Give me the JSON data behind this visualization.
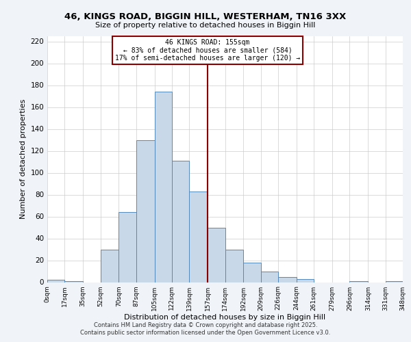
{
  "title": "46, KINGS ROAD, BIGGIN HILL, WESTERHAM, TN16 3XX",
  "subtitle": "Size of property relative to detached houses in Biggin Hill",
  "xlabel": "Distribution of detached houses by size in Biggin Hill",
  "ylabel": "Number of detached properties",
  "bin_edges": [
    0,
    17,
    35,
    52,
    70,
    87,
    105,
    122,
    139,
    157,
    174,
    192,
    209,
    226,
    244,
    261,
    279,
    296,
    314,
    331,
    348
  ],
  "bar_heights": [
    2,
    1,
    0,
    30,
    64,
    130,
    174,
    111,
    83,
    50,
    30,
    18,
    10,
    5,
    3,
    0,
    0,
    1,
    0,
    1
  ],
  "bar_color": "#c8d8e8",
  "bar_edgecolor": "#5588bb",
  "vline_x": 157,
  "vline_color": "#880000",
  "annotation_title": "46 KINGS ROAD: 155sqm",
  "annotation_line1": "← 83% of detached houses are smaller (584)",
  "annotation_line2": "17% of semi-detached houses are larger (120) →",
  "annotation_box_color": "#ffffff",
  "annotation_box_edgecolor": "#880000",
  "ylim": [
    0,
    225
  ],
  "yticks": [
    0,
    20,
    40,
    60,
    80,
    100,
    120,
    140,
    160,
    180,
    200,
    220
  ],
  "tick_labels": [
    "0sqm",
    "17sqm",
    "35sqm",
    "52sqm",
    "70sqm",
    "87sqm",
    "105sqm",
    "122sqm",
    "139sqm",
    "157sqm",
    "174sqm",
    "192sqm",
    "209sqm",
    "226sqm",
    "244sqm",
    "261sqm",
    "279sqm",
    "296sqm",
    "314sqm",
    "331sqm",
    "348sqm"
  ],
  "footer1": "Contains HM Land Registry data © Crown copyright and database right 2025.",
  "footer2": "Contains public sector information licensed under the Open Government Licence v3.0.",
  "bg_color": "#f0f4f8",
  "plot_bg_color": "#ffffff",
  "grid_color": "#cccccc"
}
